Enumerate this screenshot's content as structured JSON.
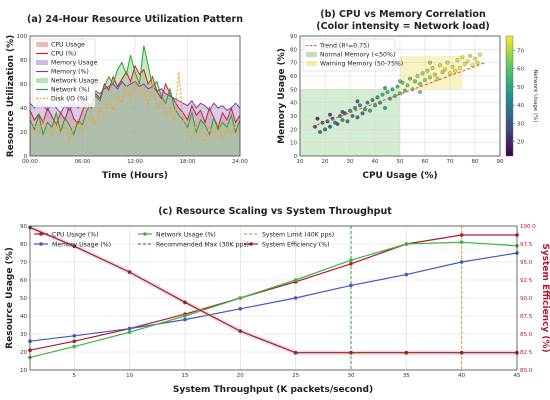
{
  "chart_data": [
    {
      "type": "area",
      "title": "(a) 24-Hour Resource Utilization Pattern",
      "xlabel": "Time (Hours)",
      "ylabel": "Resource Utilization (%)",
      "xlim": [
        0,
        24
      ],
      "ylim": [
        0,
        100
      ],
      "xticks": [
        "00:00",
        "06:00",
        "12:00",
        "18:00",
        "24:00"
      ],
      "yticks": [
        0,
        20,
        40,
        60,
        80,
        100
      ],
      "grid": true,
      "legend": "top-left",
      "legend_entries": [
        "CPU Usage",
        "CPU (%)",
        "Memory Usage",
        "Memory (%)",
        "Network Usage",
        "Network (%)",
        "Disk I/O (%)"
      ],
      "x": [
        0,
        0.5,
        1,
        1.5,
        2,
        2.5,
        3,
        3.5,
        4,
        4.5,
        5,
        5.5,
        6,
        6.5,
        7,
        7.5,
        8,
        8.5,
        9,
        9.5,
        10,
        10.5,
        11,
        11.5,
        12,
        12.5,
        13,
        13.5,
        14,
        14.5,
        15,
        15.5,
        16,
        16.5,
        17,
        17.5,
        18,
        18.5,
        19,
        19.5,
        20,
        20.5,
        21,
        21.5,
        22,
        22.5,
        23,
        23.5,
        24
      ],
      "series": [
        {
          "name": "CPU (%)",
          "color": "#c1272d",
          "values": [
            38,
            30,
            35,
            28,
            40,
            33,
            26,
            36,
            30,
            42,
            31,
            27,
            38,
            45,
            40,
            52,
            48,
            60,
            55,
            66,
            58,
            64,
            70,
            62,
            75,
            68,
            72,
            60,
            66,
            54,
            48,
            60,
            52,
            46,
            40,
            36,
            30,
            42,
            34,
            38,
            28,
            40,
            32,
            24,
            36,
            30,
            40,
            28,
            34
          ]
        },
        {
          "name": "Memory (%)",
          "color": "#7a3fae",
          "values": [
            44,
            40,
            46,
            42,
            38,
            44,
            40,
            36,
            42,
            38,
            44,
            40,
            46,
            48,
            50,
            54,
            52,
            56,
            58,
            60,
            56,
            62,
            58,
            60,
            62,
            58,
            60,
            56,
            58,
            54,
            56,
            52,
            50,
            48,
            46,
            44,
            42,
            46,
            40,
            44,
            42,
            38,
            44,
            40,
            42,
            38,
            40,
            44,
            40
          ]
        },
        {
          "name": "Network (%)",
          "color": "#2ca02c",
          "values": [
            30,
            22,
            34,
            18,
            28,
            24,
            36,
            20,
            32,
            26,
            18,
            30,
            26,
            38,
            44,
            50,
            46,
            58,
            66,
            60,
            72,
            78,
            68,
            84,
            70,
            60,
            92,
            76,
            58,
            62,
            50,
            44,
            56,
            40,
            34,
            30,
            24,
            36,
            20,
            30,
            26,
            18,
            32,
            22,
            28,
            24,
            34,
            20,
            30
          ]
        },
        {
          "name": "Disk I/O (%)",
          "color": "#ff9f1c",
          "values": [
            22,
            26,
            18,
            30,
            24,
            16,
            28,
            20,
            26,
            14,
            24,
            30,
            20,
            28,
            34,
            26,
            40,
            32,
            46,
            38,
            52,
            44,
            58,
            48,
            62,
            50,
            56,
            42,
            60,
            40,
            46,
            34,
            40,
            28,
            70,
            30,
            22,
            14,
            26,
            18,
            12,
            24,
            16,
            28,
            14,
            22,
            18,
            26,
            20
          ]
        }
      ]
    },
    {
      "type": "scatter",
      "title": "(b) CPU vs Memory Correlation",
      "subtitle": "(Color intensity = Network load)",
      "xlabel": "CPU Usage (%)",
      "ylabel": "Memory Usage (%)",
      "xlim": [
        10,
        90
      ],
      "ylim": [
        0,
        90
      ],
      "xticks": [
        10,
        20,
        30,
        40,
        50,
        60,
        70,
        80,
        90
      ],
      "yticks": [
        0,
        10,
        20,
        30,
        40,
        50,
        60,
        70,
        80,
        90
      ],
      "colorbar_label": "Network Usage (%)",
      "colorbar_ticks": [
        20,
        30,
        40,
        50,
        60,
        70
      ],
      "colorbar_range": [
        12,
        78
      ],
      "legend": "top-left",
      "legend_entries": [
        "Trend (R²=0.75)",
        "Normal Memory (<50%)",
        "Warning Memory (50-75%)"
      ],
      "trend": {
        "x0": 15,
        "y0": 22,
        "x1": 84,
        "y1": 70,
        "color": "#d95f2b"
      },
      "regions": [
        {
          "name": "Normal Memory (<50%)",
          "x": [
            10,
            50
          ],
          "y": [
            0,
            50
          ],
          "color": "#9fd49a"
        },
        {
          "name": "Warning Memory (50-75%)",
          "x": [
            50,
            75
          ],
          "y": [
            50,
            75
          ],
          "color": "#f5e27a"
        }
      ],
      "points": [
        [
          16,
          22,
          22
        ],
        [
          18,
          18,
          30
        ],
        [
          19,
          25,
          28
        ],
        [
          20,
          20,
          35
        ],
        [
          21,
          26,
          25
        ],
        [
          22,
          22,
          32
        ],
        [
          23,
          28,
          27
        ],
        [
          24,
          25,
          38
        ],
        [
          25,
          24,
          30
        ],
        [
          26,
          30,
          33
        ],
        [
          27,
          27,
          41
        ],
        [
          28,
          32,
          29
        ],
        [
          29,
          26,
          36
        ],
        [
          30,
          34,
          42
        ],
        [
          31,
          30,
          35
        ],
        [
          32,
          36,
          40
        ],
        [
          33,
          29,
          31
        ],
        [
          34,
          38,
          44
        ],
        [
          35,
          32,
          37
        ],
        [
          36,
          35,
          45
        ],
        [
          37,
          40,
          39
        ],
        [
          38,
          34,
          48
        ],
        [
          39,
          42,
          42
        ],
        [
          40,
          38,
          50
        ],
        [
          41,
          44,
          46
        ],
        [
          42,
          40,
          41
        ],
        [
          43,
          46,
          52
        ],
        [
          44,
          36,
          47
        ],
        [
          45,
          48,
          55
        ],
        [
          46,
          43,
          49
        ],
        [
          47,
          50,
          52
        ],
        [
          48,
          45,
          58
        ],
        [
          49,
          52,
          54
        ],
        [
          50,
          47,
          57
        ],
        [
          51,
          55,
          61
        ],
        [
          52,
          49,
          56
        ],
        [
          53,
          53,
          62
        ],
        [
          54,
          58,
          59
        ],
        [
          55,
          50,
          64
        ],
        [
          56,
          56,
          60
        ],
        [
          57,
          60,
          66
        ],
        [
          58,
          54,
          63
        ],
        [
          59,
          62,
          68
        ],
        [
          60,
          57,
          65
        ],
        [
          61,
          64,
          70
        ],
        [
          62,
          59,
          67
        ],
        [
          63,
          66,
          72
        ],
        [
          64,
          61,
          69
        ],
        [
          65,
          58,
          71
        ],
        [
          66,
          68,
          73
        ],
        [
          67,
          63,
          70
        ],
        [
          68,
          65,
          74
        ],
        [
          69,
          70,
          72
        ],
        [
          70,
          62,
          75
        ],
        [
          71,
          67,
          73
        ],
        [
          72,
          64,
          76
        ],
        [
          73,
          72,
          74
        ],
        [
          74,
          66,
          77
        ],
        [
          75,
          74,
          75
        ],
        [
          76,
          69,
          76
        ],
        [
          77,
          71,
          77
        ],
        [
          78,
          75,
          74
        ],
        [
          79,
          68,
          78
        ],
        [
          80,
          73,
          76
        ],
        [
          81,
          70,
          77
        ],
        [
          82,
          76,
          78
        ],
        [
          17,
          28,
          20
        ],
        [
          22,
          31,
          24
        ],
        [
          27,
          33,
          27
        ],
        [
          33,
          41,
          33
        ],
        [
          44,
          51,
          48
        ],
        [
          58,
          48,
          62
        ],
        [
          50,
          56,
          58
        ],
        [
          62,
          70,
          67
        ]
      ]
    },
    {
      "type": "line",
      "title": "(c) Resource Scaling vs System Throughput",
      "xlabel": "System Throughput (K packets/second)",
      "ylabel": "Resource Usage (%)",
      "ylabel_right": "System Efficiency (%)",
      "xlim": [
        1,
        45
      ],
      "ylim": [
        10,
        90
      ],
      "ylim_right": [
        80,
        100
      ],
      "xticks": [
        5,
        10,
        15,
        20,
        25,
        30,
        35,
        40,
        45
      ],
      "yticks": [
        10,
        20,
        30,
        40,
        50,
        60,
        70,
        80,
        90
      ],
      "yticks_right": [
        "80.0",
        "82.5",
        "85.0",
        "87.5",
        "90.0",
        "92.5",
        "95.0",
        "97.5",
        "100.0"
      ],
      "legend": "top",
      "legend_entries": [
        "CPU Usage (%)",
        "Network Usage (%)",
        "System Limit (40K pps)",
        "Memory Usage (%)",
        "Recommended Max (30K pps)",
        "System Efficiency (%)"
      ],
      "vlines": [
        {
          "name": "System Limit (40K pps)",
          "x": 40,
          "color": "#e0a030"
        },
        {
          "name": "Recommended Max (30K pps)",
          "x": 30,
          "color": "#2e9e3e"
        }
      ],
      "x": [
        1,
        5,
        10,
        15,
        20,
        25,
        30,
        35,
        40,
        45
      ],
      "series": [
        {
          "name": "CPU Usage (%)",
          "axis": "left",
          "color": "#b5172d",
          "values": [
            21,
            26,
            33,
            41,
            50,
            59,
            69,
            80,
            85,
            85
          ]
        },
        {
          "name": "Memory Usage (%)",
          "axis": "left",
          "color": "#4458c8",
          "values": [
            26,
            29,
            33,
            38,
            44,
            50,
            57,
            63,
            70,
            75
          ]
        },
        {
          "name": "Network Usage (%)",
          "axis": "left",
          "color": "#3fb53a",
          "values": [
            17,
            23,
            31,
            40,
            50,
            60,
            71,
            80,
            81,
            79
          ]
        },
        {
          "name": "System Efficiency (%)",
          "axis": "right",
          "color": "#8b2a1e",
          "values": [
            99.8,
            97.2,
            93.6,
            89.4,
            85.4,
            82.4,
            82.4,
            82.4,
            82.4,
            82.4
          ]
        }
      ]
    }
  ]
}
